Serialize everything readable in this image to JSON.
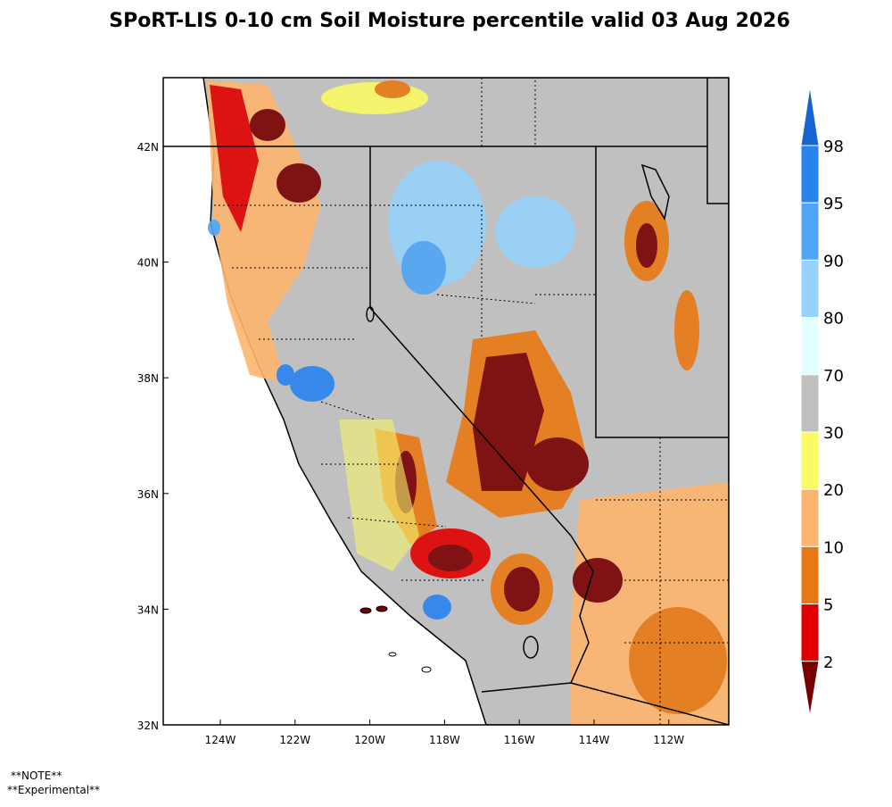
{
  "title": "SPoRT-LIS 0-10 cm Soil Moisture percentile valid 03 Aug 2026",
  "map": {
    "lon_ticks": [
      "124W",
      "122W",
      "120W",
      "118W",
      "116W",
      "114W",
      "112W"
    ],
    "lat_ticks": [
      "42N",
      "40N",
      "38N",
      "36N",
      "34N",
      "32N"
    ]
  },
  "colorbar": {
    "labels": [
      "98",
      "95",
      "90",
      "80",
      "70",
      "30",
      "20",
      "10",
      "5",
      "2"
    ],
    "colors": [
      "#1464d2",
      "#2882f0",
      "#50a5f5",
      "#96d2fa",
      "#e1ffff",
      "#c0c0c0",
      "#fafa64",
      "#fdb46e",
      "#e87814",
      "#e10000",
      "#780000"
    ]
  },
  "notes": [
    "**NOTE**",
    "**Experimental**"
  ]
}
